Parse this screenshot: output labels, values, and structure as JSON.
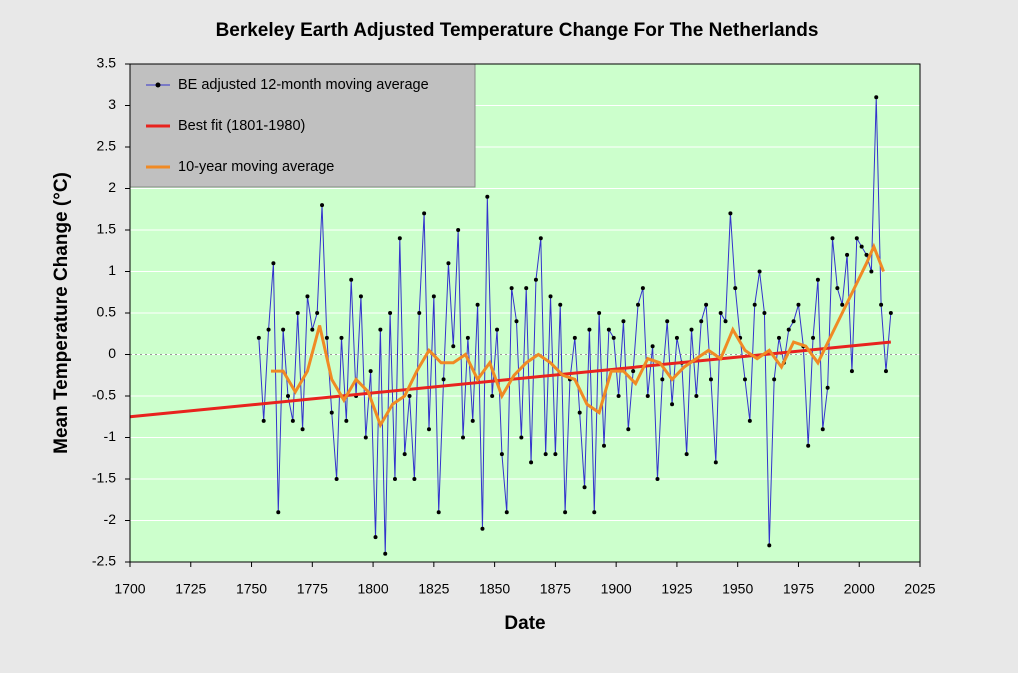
{
  "chart_data": {
    "type": "line",
    "title": "Berkeley Earth Adjusted Temperature Change For The Netherlands",
    "x_label": "Date",
    "y_label": "Mean  Temperature  Change  (°C)",
    "xlim": [
      1700,
      2025
    ],
    "xticks": [
      1700,
      1725,
      1750,
      1775,
      1800,
      1825,
      1850,
      1875,
      1900,
      1925,
      1950,
      1975,
      2000,
      2025
    ],
    "ylim": [
      -2.5,
      3.5
    ],
    "yticks": [
      -2.5,
      -2,
      -1.5,
      -1,
      -0.5,
      0,
      0.5,
      1,
      1.5,
      2,
      2.5,
      3,
      3.5
    ],
    "grid": true,
    "legend": "top-left",
    "series": [
      {
        "name": "BE adjusted 12-month moving average",
        "color": "#3333cc",
        "markers": true,
        "x": [
          1753,
          1755,
          1757,
          1759,
          1761,
          1763,
          1765,
          1767,
          1769,
          1771,
          1773,
          1775,
          1777,
          1779,
          1781,
          1783,
          1785,
          1787,
          1789,
          1791,
          1793,
          1795,
          1797,
          1799,
          1801,
          1803,
          1805,
          1807,
          1809,
          1811,
          1813,
          1815,
          1817,
          1819,
          1821,
          1823,
          1825,
          1827,
          1829,
          1831,
          1833,
          1835,
          1837,
          1839,
          1841,
          1843,
          1845,
          1847,
          1849,
          1851,
          1853,
          1855,
          1857,
          1859,
          1861,
          1863,
          1865,
          1867,
          1869,
          1871,
          1873,
          1875,
          1877,
          1879,
          1881,
          1883,
          1885,
          1887,
          1889,
          1891,
          1893,
          1895,
          1897,
          1899,
          1901,
          1903,
          1905,
          1907,
          1909,
          1911,
          1913,
          1915,
          1917,
          1919,
          1921,
          1923,
          1925,
          1927,
          1929,
          1931,
          1933,
          1935,
          1937,
          1939,
          1941,
          1943,
          1945,
          1947,
          1949,
          1951,
          1953,
          1955,
          1957,
          1959,
          1961,
          1963,
          1965,
          1967,
          1969,
          1971,
          1973,
          1975,
          1977,
          1979,
          1981,
          1983,
          1985,
          1987,
          1989,
          1991,
          1993,
          1995,
          1997,
          1999,
          2001,
          2003,
          2005,
          2007,
          2009,
          2011,
          2013
        ],
        "values": [
          0.2,
          -0.8,
          0.3,
          1.1,
          -1.9,
          0.3,
          -0.5,
          -0.8,
          0.5,
          -0.9,
          0.7,
          0.3,
          0.5,
          1.8,
          0.2,
          -0.7,
          -1.5,
          0.2,
          -0.8,
          0.9,
          -0.5,
          0.7,
          -1.0,
          -0.2,
          -2.2,
          0.3,
          -2.4,
          0.5,
          -1.5,
          1.4,
          -1.2,
          -0.5,
          -1.5,
          0.5,
          1.7,
          -0.9,
          0.7,
          -1.9,
          -0.3,
          1.1,
          0.1,
          1.5,
          -1.0,
          0.2,
          -0.8,
          0.6,
          -2.1,
          1.9,
          -0.5,
          0.3,
          -1.2,
          -1.9,
          0.8,
          0.4,
          -1.0,
          0.8,
          -1.3,
          0.9,
          1.4,
          -1.2,
          0.7,
          -1.2,
          0.6,
          -1.9,
          -0.3,
          0.2,
          -0.7,
          -1.6,
          0.3,
          -1.9,
          0.5,
          -1.1,
          0.3,
          0.2,
          -0.5,
          0.4,
          -0.9,
          -0.2,
          0.6,
          0.8,
          -0.5,
          0.1,
          -1.5,
          -0.3,
          0.4,
          -0.6,
          0.2,
          -0.1,
          -1.2,
          0.3,
          -0.5,
          0.4,
          0.6,
          -0.3,
          -1.3,
          0.5,
          0.4,
          1.7,
          0.8,
          0.2,
          -0.3,
          -0.8,
          0.6,
          1.0,
          0.5,
          -2.3,
          -0.3,
          0.2,
          -0.1,
          0.3,
          0.4,
          0.6,
          0.1,
          -1.1,
          0.2,
          0.9,
          -0.9,
          -0.4,
          1.4,
          0.8,
          0.6,
          1.2,
          -0.2,
          1.4,
          1.3,
          1.2,
          1.0,
          3.1,
          0.6,
          -0.2,
          0.5
        ]
      },
      {
        "name": "Best fit (1801-1980)",
        "color": "#e8231e",
        "markers": false,
        "x": [
          1700,
          2013
        ],
        "values": [
          -0.75,
          0.15
        ]
      },
      {
        "name": "10-year moving average",
        "color": "#f08a24",
        "markers": false,
        "x": [
          1758,
          1763,
          1768,
          1773,
          1778,
          1783,
          1788,
          1793,
          1798,
          1803,
          1808,
          1813,
          1818,
          1823,
          1828,
          1833,
          1838,
          1843,
          1848,
          1853,
          1858,
          1863,
          1868,
          1873,
          1878,
          1883,
          1888,
          1893,
          1898,
          1903,
          1908,
          1913,
          1918,
          1923,
          1928,
          1933,
          1938,
          1943,
          1948,
          1953,
          1958,
          1963,
          1968,
          1973,
          1978,
          1983,
          1988,
          1993,
          1998,
          2003,
          2006,
          2010
        ],
        "values": [
          -0.2,
          -0.2,
          -0.45,
          -0.2,
          0.35,
          -0.3,
          -0.55,
          -0.3,
          -0.45,
          -0.85,
          -0.6,
          -0.5,
          -0.2,
          0.05,
          -0.1,
          -0.1,
          0.0,
          -0.3,
          -0.1,
          -0.5,
          -0.25,
          -0.1,
          0.0,
          -0.1,
          -0.25,
          -0.3,
          -0.6,
          -0.7,
          -0.2,
          -0.2,
          -0.35,
          -0.05,
          -0.1,
          -0.3,
          -0.15,
          -0.05,
          0.05,
          -0.05,
          0.3,
          0.05,
          -0.05,
          0.05,
          -0.15,
          0.15,
          0.1,
          -0.1,
          0.2,
          0.5,
          0.8,
          1.1,
          1.3,
          1.0
        ]
      }
    ]
  }
}
